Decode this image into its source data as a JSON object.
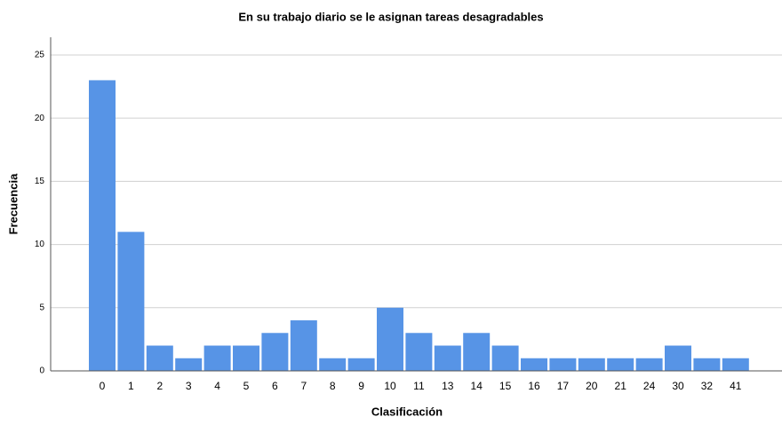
{
  "chart_data": {
    "type": "bar",
    "title": "En su trabajo diario se le asignan tareas desagradables",
    "x_label": "Clasificación",
    "y_label": "Frecuencia",
    "categories": [
      "0",
      "1",
      "2",
      "3",
      "4",
      "5",
      "6",
      "7",
      "8",
      "9",
      "10",
      "11",
      "13",
      "14",
      "15",
      "16",
      "17",
      "20",
      "21",
      "24",
      "30",
      "32",
      "41"
    ],
    "values": [
      23,
      11,
      2,
      1,
      2,
      2,
      3,
      4,
      1,
      1,
      5,
      3,
      2,
      3,
      2,
      1,
      1,
      1,
      1,
      1,
      2,
      1,
      1
    ],
    "color": "#5794e6",
    "ylim": [
      0,
      26.4
    ],
    "yticks": [
      0,
      5,
      10,
      15,
      20,
      25
    ],
    "grid": true
  }
}
